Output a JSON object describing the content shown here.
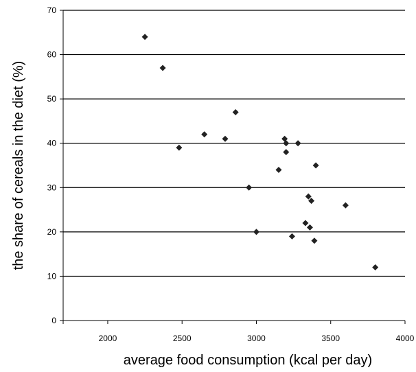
{
  "chart_data": {
    "type": "scatter",
    "title": "",
    "xlabel": "average food consumption (kcal per day)",
    "ylabel": "the share of cereals in the diet (%)",
    "xlim": [
      1700,
      4000
    ],
    "ylim": [
      0,
      70
    ],
    "x_ticks": [
      2000,
      2500,
      3000,
      3500,
      4000
    ],
    "x_tick_labels": [
      "2000",
      "2500",
      "3000",
      "3500",
      "4000"
    ],
    "y_ticks": [
      0,
      10,
      20,
      30,
      40,
      50,
      60,
      70
    ],
    "y_tick_labels": [
      "0",
      "10",
      "20",
      "30",
      "40",
      "50",
      "60",
      "70"
    ],
    "grid": "horizontal",
    "marker": "diamond",
    "marker_color": "#222222",
    "grid_color": "#000000",
    "series": [
      {
        "points": [
          {
            "x": 2250,
            "y": 64
          },
          {
            "x": 2370,
            "y": 57
          },
          {
            "x": 2480,
            "y": 39
          },
          {
            "x": 2650,
            "y": 42
          },
          {
            "x": 2790,
            "y": 41
          },
          {
            "x": 2860,
            "y": 47
          },
          {
            "x": 2950,
            "y": 30
          },
          {
            "x": 3000,
            "y": 20
          },
          {
            "x": 3150,
            "y": 34
          },
          {
            "x": 3190,
            "y": 41
          },
          {
            "x": 3200,
            "y": 40
          },
          {
            "x": 3200,
            "y": 38
          },
          {
            "x": 3240,
            "y": 19
          },
          {
            "x": 3280,
            "y": 40
          },
          {
            "x": 3330,
            "y": 22
          },
          {
            "x": 3350,
            "y": 28
          },
          {
            "x": 3360,
            "y": 21
          },
          {
            "x": 3370,
            "y": 27
          },
          {
            "x": 3390,
            "y": 18
          },
          {
            "x": 3400,
            "y": 35
          },
          {
            "x": 3600,
            "y": 26
          },
          {
            "x": 3800,
            "y": 12
          }
        ]
      }
    ]
  }
}
